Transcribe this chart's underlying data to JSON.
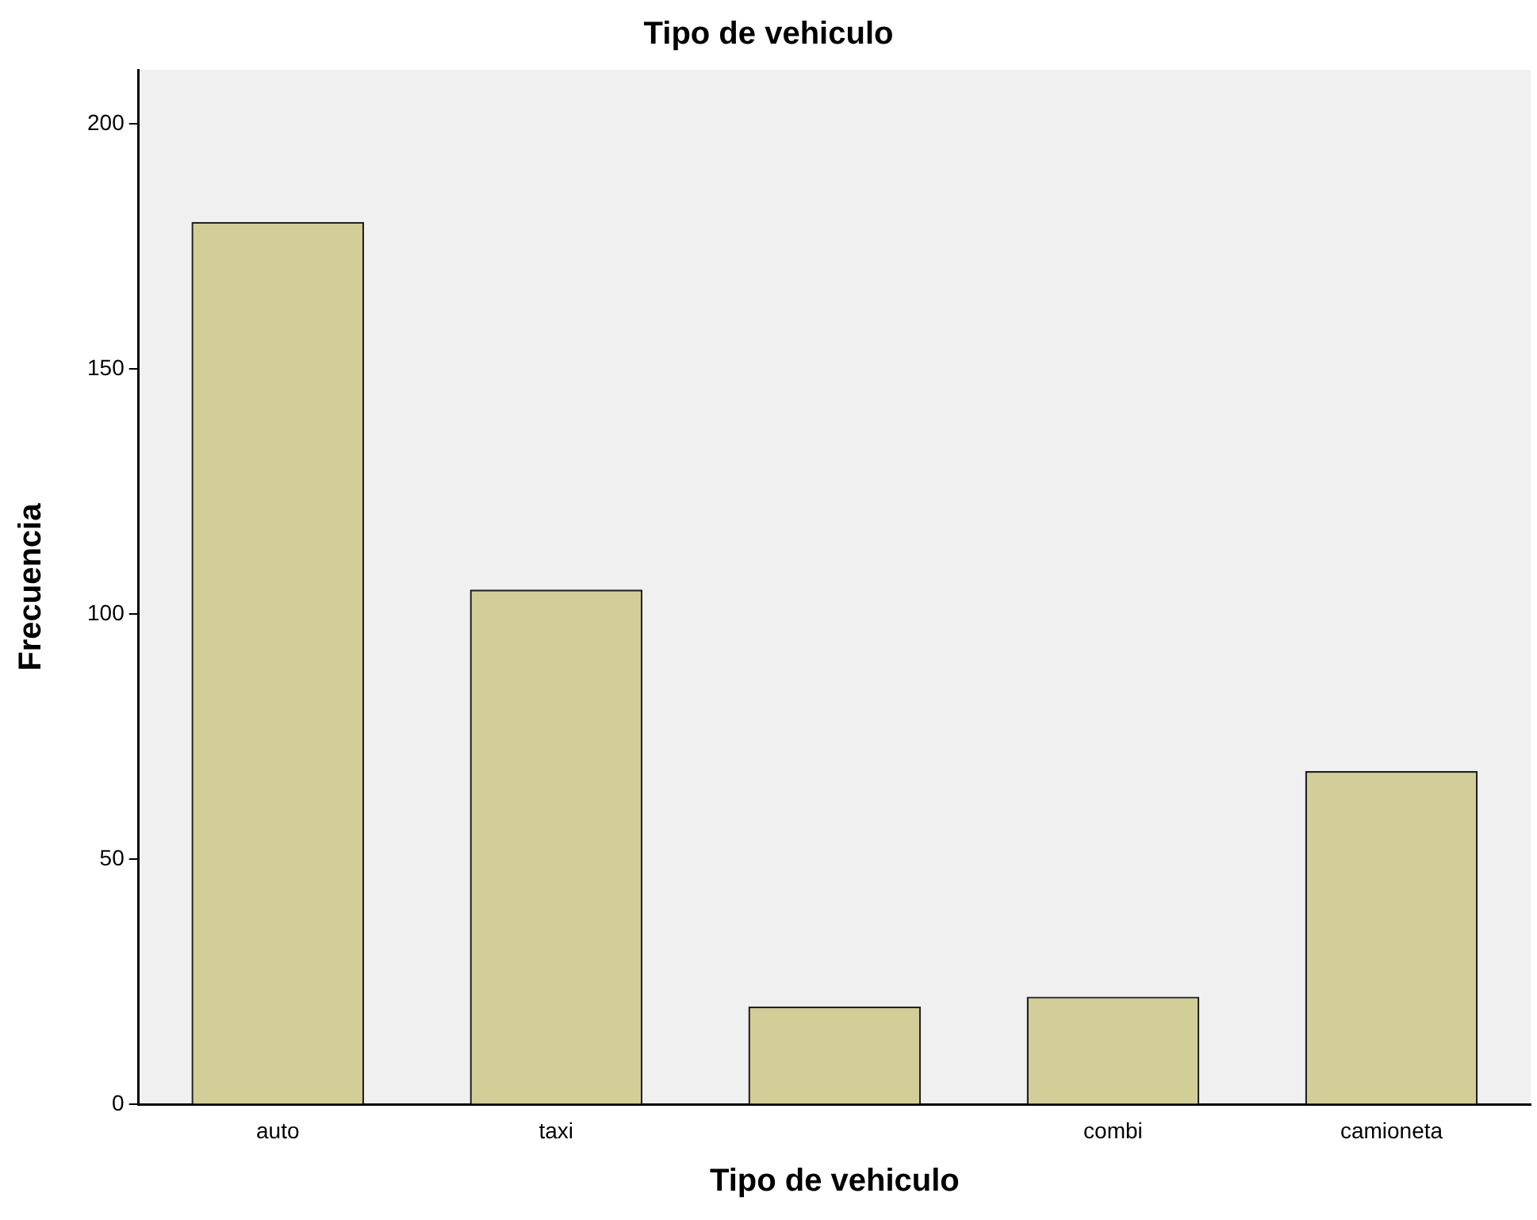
{
  "chart_data": {
    "type": "bar",
    "title": "Tipo de vehiculo",
    "xlabel": "Tipo de vehiculo",
    "ylabel": "Frecuencia",
    "categories": [
      "auto",
      "taxi",
      null,
      "combi",
      "camioneta"
    ],
    "values": [
      180,
      105,
      20,
      22,
      68
    ],
    "color": "#d3ce97",
    "ylim": [
      0,
      211
    ],
    "yticks": [
      0,
      50,
      100,
      150,
      200
    ],
    "grid": false,
    "legend": false
  }
}
